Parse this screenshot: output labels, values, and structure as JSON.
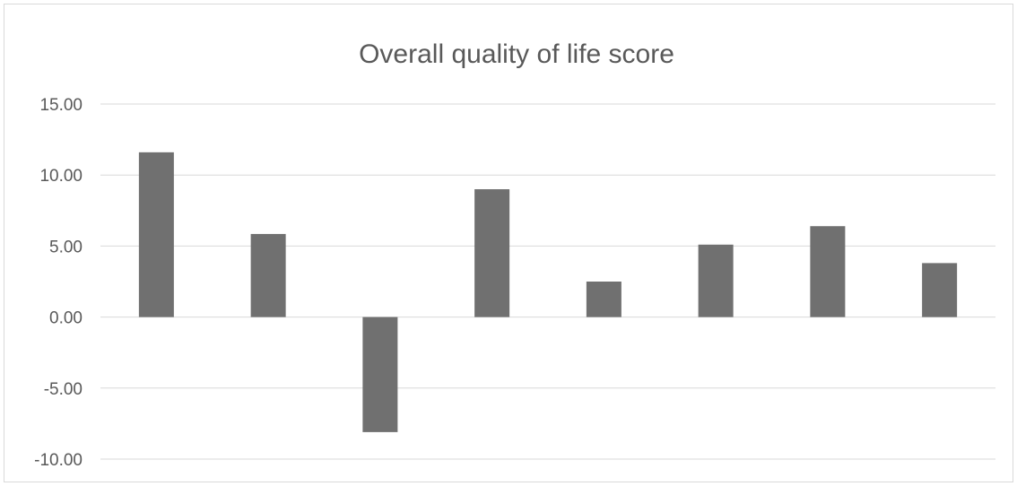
{
  "chart_data": {
    "type": "bar",
    "title": "Overall quality of life score",
    "xlabel": "",
    "ylabel": "",
    "categories": [
      "",
      "",
      "",
      "",
      "",
      "",
      "",
      ""
    ],
    "values": [
      11.6,
      5.85,
      -8.1,
      9.0,
      2.5,
      5.1,
      6.4,
      3.8
    ],
    "ylim": [
      -10,
      15
    ],
    "yticks": [
      15,
      10,
      5,
      0,
      -5,
      -10
    ],
    "ytick_labels": [
      "15.00",
      "10.00",
      "5.00",
      "0.00",
      "-5.00",
      "-10.00"
    ],
    "grid": true,
    "legend": "none",
    "bar_color": "#707070",
    "grid_color": "#d9d9d9",
    "text_color": "#595959"
  }
}
